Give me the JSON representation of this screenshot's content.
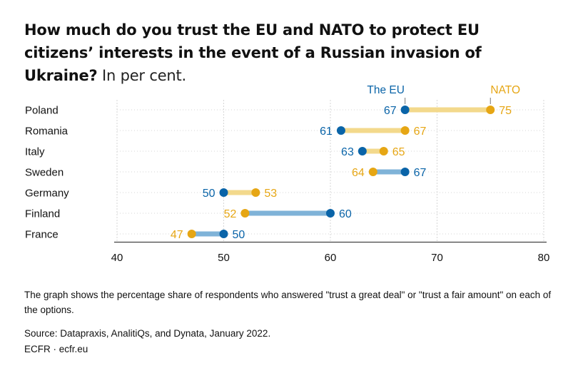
{
  "title": {
    "bold": "How much do you trust the EU and NATO to protect EU citizens’ interests in the event of a Russian invasion of Ukraine?",
    "unit": " In per cent."
  },
  "colors": {
    "eu": "#0a64a8",
    "nato": "#e6a614",
    "bar_eu_higher": "#7fb3d8",
    "bar_nato_higher": "#f3d98c",
    "grid": "#d6d6d6"
  },
  "chart_data": {
    "type": "dumbbell",
    "categories": [
      "Poland",
      "Romania",
      "Italy",
      "Sweden",
      "Germany",
      "Finland",
      "France"
    ],
    "series": [
      {
        "name": "The EU",
        "values": [
          67,
          61,
          63,
          67,
          50,
          60,
          50
        ]
      },
      {
        "name": "NATO",
        "values": [
          75,
          67,
          65,
          64,
          53,
          52,
          47
        ]
      }
    ],
    "xticks": [
      40,
      50,
      60,
      70,
      80
    ],
    "xlim": [
      40,
      80
    ],
    "legend": [
      "The EU",
      "NATO"
    ],
    "grid": true
  },
  "note": "The graph shows the percentage share of respondents who answered \"trust a great deal\" or \"trust a fair amount\" on each of the options.",
  "source": "Source: Datapraxis, AnalitiQs, and Dynata, January 2022.",
  "credit": "ECFR · ecfr.eu"
}
